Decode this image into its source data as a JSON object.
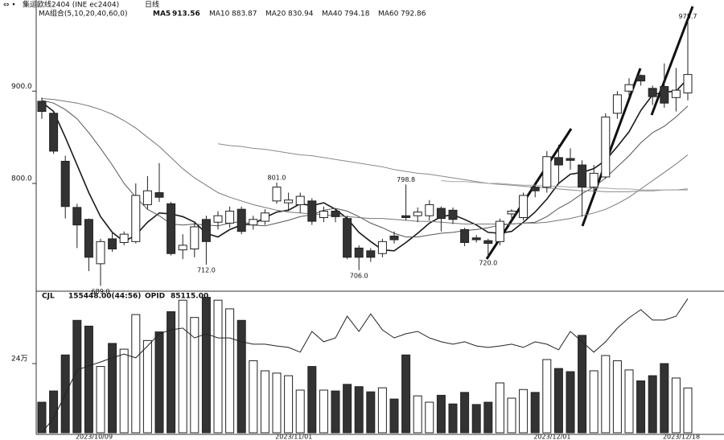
{
  "chart_data": [
    {
      "type": "candlestick",
      "title": "集运欧线2404 (INE ec2404)",
      "subtitle": "日线",
      "indicator": "MA组合(5,10,20,40,60,0)",
      "categories": [
        null,
        null,
        null,
        null,
        null,
        "2023/10/09",
        null,
        null,
        null,
        null,
        null,
        null,
        null,
        null,
        null,
        null,
        null,
        null,
        null,
        null,
        null,
        null,
        "2023/11/01",
        null,
        null,
        null,
        null,
        null,
        null,
        null,
        null,
        null,
        null,
        null,
        null,
        null,
        null,
        null,
        null,
        null,
        null,
        null,
        null,
        null,
        "2023/12/01",
        null,
        null,
        null,
        null,
        null,
        null,
        null,
        null,
        null,
        null,
        "2023/12/18"
      ],
      "open": [
        889,
        876,
        824,
        774,
        761,
        713,
        740,
        736,
        737,
        777,
        790,
        778,
        728,
        729,
        761,
        758,
        757,
        772,
        755,
        759,
        781,
        779,
        777,
        781,
        763,
        770,
        762,
        730,
        727,
        724,
        743,
        765,
        765,
        765,
        773,
        771,
        750,
        741,
        738,
        737,
        767,
        763,
        796,
        796,
        828,
        827,
        820,
        796,
        807,
        876,
        900,
        917,
        903,
        905,
        893,
        898
      ],
      "high": [
        893,
        878,
        830,
        778,
        762,
        740,
        748,
        748,
        800,
        808,
        822,
        780,
        745,
        758,
        765,
        770,
        775,
        775,
        765,
        772,
        801,
        790,
        790,
        784,
        775,
        772,
        765,
        733,
        730,
        740,
        748,
        798.8,
        774,
        782,
        775,
        774,
        752,
        744,
        740,
        762,
        772,
        790,
        800,
        835,
        842,
        838,
        825,
        820,
        876,
        900,
        914,
        918,
        906,
        930,
        925,
        975.7
      ],
      "low": [
        870,
        832,
        762,
        730,
        705,
        689,
        726,
        733,
        735,
        772,
        780,
        722,
        718,
        720,
        712,
        750,
        752,
        745,
        750,
        755,
        778,
        770,
        768,
        755,
        758,
        758,
        718,
        706,
        715,
        720,
        735,
        760,
        758,
        760,
        748,
        756,
        732,
        736,
        720,
        733,
        758,
        760,
        785,
        790,
        800,
        815,
        764,
        790,
        805,
        870,
        893,
        906,
        885,
        882,
        878,
        890
      ],
      "close": [
        878,
        835,
        775,
        755,
        720,
        737,
        729,
        745,
        787,
        792,
        785,
        724,
        733,
        753,
        737,
        765,
        770,
        748,
        761,
        768,
        796,
        782,
        786,
        759,
        770,
        764,
        720,
        720,
        720,
        737,
        739,
        763,
        769,
        777,
        762,
        761,
        736,
        739,
        735,
        759,
        770,
        787,
        792,
        829,
        820,
        825,
        796,
        811,
        872,
        896,
        907,
        911,
        894,
        887,
        901,
        918
      ],
      "up_color": "#ffffff",
      "down_color": "#333333",
      "series": [
        {
          "name": "MA5",
          "color": "#1a1a1a",
          "values": [
            888,
            878,
            850,
            820,
            790,
            764,
            747,
            737,
            744,
            758,
            768,
            767,
            764,
            758,
            746,
            742,
            750,
            755,
            756,
            763,
            769,
            771,
            778,
            776,
            779,
            772,
            762,
            747,
            737,
            728,
            727,
            736,
            746,
            757,
            764,
            766,
            761,
            755,
            747,
            746,
            748,
            758,
            769,
            783,
            800,
            810,
            812,
            816,
            825,
            840,
            856,
            879,
            896,
            899,
            900,
            913.56
          ]
        },
        {
          "name": "MA10",
          "color": "#555555",
          "values": [
            890,
            887,
            880,
            870,
            855,
            838,
            820,
            800,
            785,
            772,
            765,
            756,
            755,
            756,
            755,
            754,
            757,
            759,
            755,
            754,
            757,
            760,
            764,
            766,
            771,
            773,
            770,
            764,
            757,
            752,
            746,
            742,
            742,
            744,
            746,
            747,
            749,
            750,
            752,
            755,
            756,
            757,
            758,
            764,
            773,
            780,
            789,
            796,
            806,
            818,
            830,
            844,
            855,
            862,
            872,
            883.87
          ]
        },
        {
          "name": "MA20",
          "color": "#777777",
          "values": [
            892,
            891,
            889,
            887,
            884,
            880,
            875,
            868,
            860,
            850,
            840,
            828,
            816,
            806,
            798,
            790,
            785,
            781,
            777,
            774,
            771,
            769,
            768,
            767,
            766,
            765,
            764,
            763,
            762,
            762,
            761,
            760,
            759,
            759,
            758,
            757,
            756,
            756,
            756,
            756,
            756,
            757,
            757,
            758,
            760,
            762,
            765,
            768,
            772,
            778,
            785,
            794,
            803,
            812,
            821,
            830.94
          ]
        },
        {
          "name": "MA40",
          "color": "#8a8a8a",
          "values": [
            null,
            null,
            null,
            null,
            null,
            null,
            null,
            null,
            null,
            null,
            null,
            null,
            null,
            null,
            null,
            843,
            841,
            840,
            838,
            837,
            835,
            833,
            831,
            830,
            828,
            826,
            824,
            822,
            820,
            818,
            815,
            813,
            811,
            810,
            808,
            806,
            804,
            802,
            800,
            799,
            798,
            797,
            796,
            795,
            794,
            793,
            792,
            792,
            791,
            791,
            791,
            792,
            792,
            793,
            793,
            794.18
          ]
        },
        {
          "name": "MA60",
          "color": "#a5a5a5",
          "values": [
            null,
            null,
            null,
            null,
            null,
            null,
            null,
            null,
            null,
            null,
            null,
            null,
            null,
            null,
            null,
            null,
            null,
            null,
            null,
            null,
            null,
            null,
            null,
            null,
            null,
            null,
            null,
            null,
            null,
            null,
            null,
            null,
            null,
            null,
            803,
            802,
            802,
            801,
            800,
            800,
            799,
            798,
            798,
            797,
            797,
            796,
            796,
            795,
            795,
            794,
            794,
            793,
            793,
            793,
            793,
            792.86
          ]
        }
      ],
      "annotations": [
        {
          "index": 5,
          "label": "689.0"
        },
        {
          "index": 14,
          "label": "712.0"
        },
        {
          "index": 20,
          "label": "801.0"
        },
        {
          "index": 27,
          "label": "706.0"
        },
        {
          "index": 31,
          "label": "798.8"
        },
        {
          "index": 38,
          "label": "720.0"
        },
        {
          "index": 55,
          "label": "975.7"
        }
      ],
      "ylim": [
        685,
        990
      ],
      "yticks": [
        {
          "value": 800,
          "label": "800.0"
        },
        {
          "value": 900,
          "label": "900.0"
        }
      ]
    },
    {
      "type": "bar",
      "title": "CJL",
      "legend_value": "155448.00(44:56)",
      "values": [
        106000,
        145000,
        270000,
        390000,
        370000,
        230000,
        310000,
        290000,
        410000,
        320000,
        350000,
        420000,
        460000,
        400000,
        470000,
        460000,
        430000,
        390000,
        250000,
        215000,
        207000,
        198000,
        148000,
        230000,
        148000,
        145000,
        168000,
        160000,
        142000,
        156000,
        117000,
        270000,
        128000,
        106000,
        130000,
        100000,
        140000,
        98000,
        106000,
        173000,
        120000,
        150000,
        140000,
        254000,
        223000,
        212000,
        338000,
        215000,
        268000,
        250000,
        218000,
        180000,
        198000,
        240000,
        190000,
        155448
      ],
      "ylim": [
        0,
        474500
      ],
      "yticks": [
        {
          "value": 240000,
          "label": "24万"
        }
      ],
      "series": [
        {
          "name": "OPID",
          "legend_value": "85115.00",
          "color": "#222222",
          "axis": "y2",
          "values": [
            40000,
            44900,
            53000,
            61100,
            62500,
            63800,
            65200,
            66500,
            65200,
            69200,
            73300,
            74600,
            75200,
            71900,
            73300,
            71900,
            71900,
            70600,
            69800,
            69800,
            69200,
            68700,
            67100,
            74100,
            70600,
            71900,
            79200,
            74100,
            80000,
            74600,
            71900,
            73300,
            74100,
            71900,
            70600,
            69800,
            70600,
            69200,
            68700,
            69200,
            69800,
            68700,
            70600,
            69800,
            67900,
            74100,
            70600,
            67100,
            70600,
            75200,
            78700,
            81400,
            77900,
            77900,
            79200,
            85115
          ]
        }
      ],
      "y2lim": [
        40000,
        86000
      ]
    }
  ]
}
